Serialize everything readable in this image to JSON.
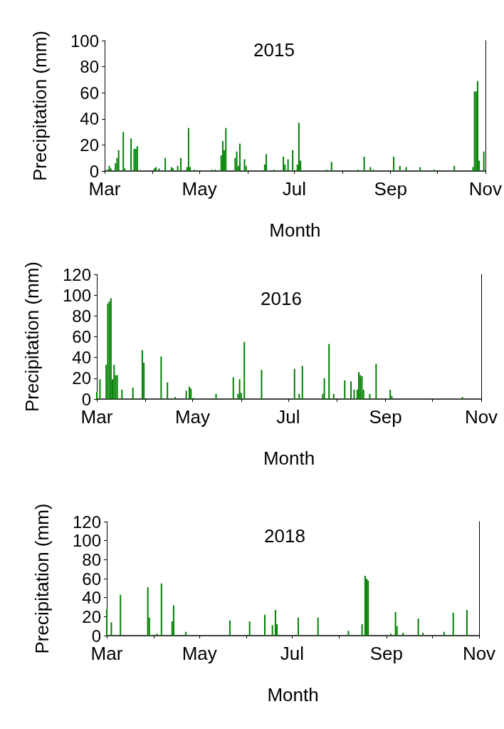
{
  "chart_data": [
    {
      "type": "bar",
      "title": "2015",
      "xlabel": "Month",
      "ylabel": "Precipitation (mm)",
      "color": "#008000",
      "x": [
        "2015-03-03",
        "2015-03-04",
        "2015-03-05",
        "2015-03-08",
        "2015-03-09",
        "2015-03-10",
        "2015-03-13",
        "2015-03-14",
        "2015-03-18",
        "2015-03-20",
        "2015-03-21",
        "2015-03-22",
        "2015-04-02",
        "2015-04-03",
        "2015-04-05",
        "2015-04-09",
        "2015-04-13",
        "2015-04-14",
        "2015-04-17",
        "2015-04-19",
        "2015-04-23",
        "2015-04-24",
        "2015-04-25",
        "2015-04-28",
        "2015-05-09",
        "2015-05-11",
        "2015-05-15",
        "2015-05-16",
        "2015-05-17",
        "2015-05-18",
        "2015-05-24",
        "2015-05-25",
        "2015-05-26",
        "2015-05-27",
        "2015-05-30",
        "2015-05-31",
        "2015-06-12",
        "2015-06-13",
        "2015-06-18",
        "2015-06-24",
        "2015-06-25",
        "2015-06-27",
        "2015-06-30",
        "2015-07-03",
        "2015-07-04",
        "2015-07-05",
        "2015-07-22",
        "2015-07-25",
        "2015-08-11",
        "2015-08-15",
        "2015-08-19",
        "2015-08-21",
        "2015-09-03",
        "2015-09-07",
        "2015-09-11",
        "2015-09-20",
        "2015-09-29",
        "2015-10-12",
        "2015-10-24",
        "2015-10-25",
        "2015-10-26",
        "2015-10-27",
        "2015-10-28",
        "2015-10-31"
      ],
      "values": [
        1,
        4,
        2,
        6,
        10,
        16,
        30,
        2,
        25,
        17,
        17,
        19,
        2,
        3,
        2,
        10,
        3,
        2,
        4,
        10,
        3,
        33,
        3,
        1,
        1,
        1,
        12,
        23,
        16,
        33,
        10,
        15,
        4,
        21,
        9,
        4,
        5,
        13,
        1,
        11,
        5,
        9,
        16,
        5,
        37,
        8,
        1,
        7,
        1,
        11,
        3,
        1,
        11,
        4,
        3,
        3,
        1,
        4,
        3,
        61,
        61,
        69,
        8,
        15
      ],
      "xlim": [
        "2015-03-01",
        "2015-11-01"
      ],
      "xticks": [
        {
          "value": "2015-03-01",
          "label": "Mar"
        },
        {
          "value": "2015-04-01",
          "label": null
        },
        {
          "value": "2015-05-01",
          "label": "May"
        },
        {
          "value": "2015-06-01",
          "label": null
        },
        {
          "value": "2015-07-01",
          "label": "Jul"
        },
        {
          "value": "2015-08-01",
          "label": null
        },
        {
          "value": "2015-09-01",
          "label": "Sep"
        },
        {
          "value": "2015-10-01",
          "label": null
        },
        {
          "value": "2015-11-01",
          "label": "Nov"
        }
      ],
      "ylim": [
        0,
        100
      ],
      "yticks": [
        0,
        20,
        40,
        60,
        80,
        100
      ]
    },
    {
      "type": "bar",
      "title": "2016",
      "xlabel": "Month",
      "ylabel": "Precipitation (mm)",
      "color": "#008000",
      "x": [
        "2016-03-01",
        "2016-03-03",
        "2016-03-07",
        "2016-03-08",
        "2016-03-09",
        "2016-03-10",
        "2016-03-11",
        "2016-03-12",
        "2016-03-13",
        "2016-03-14",
        "2016-03-17",
        "2016-03-24",
        "2016-03-30",
        "2016-03-31",
        "2016-04-11",
        "2016-04-15",
        "2016-04-20",
        "2016-04-27",
        "2016-04-29",
        "2016-04-30",
        "2016-05-02",
        "2016-05-16",
        "2016-05-27",
        "2016-05-30",
        "2016-05-31",
        "2016-06-01",
        "2016-06-03",
        "2016-06-14",
        "2016-07-05",
        "2016-07-08",
        "2016-07-10",
        "2016-07-23",
        "2016-07-24",
        "2016-07-27",
        "2016-07-30",
        "2016-08-06",
        "2016-08-10",
        "2016-08-12",
        "2016-08-14",
        "2016-08-15",
        "2016-08-16",
        "2016-08-17",
        "2016-08-18",
        "2016-08-22",
        "2016-08-26",
        "2016-09-04",
        "2016-09-05",
        "2016-10-20"
      ],
      "values": [
        7,
        19,
        33,
        92,
        94,
        97,
        19,
        33,
        23,
        23,
        9,
        11,
        47,
        35,
        41,
        16,
        2,
        8,
        12,
        10,
        1,
        5,
        21,
        5,
        19,
        6,
        55,
        28,
        29,
        5,
        32,
        5,
        20,
        53,
        5,
        18,
        17,
        9,
        9,
        26,
        23,
        22,
        9,
        5,
        34,
        9,
        3,
        2
      ],
      "xlim": [
        "2016-03-01",
        "2016-11-01"
      ],
      "xticks": [
        {
          "value": "2016-03-01",
          "label": "Mar"
        },
        {
          "value": "2016-04-01",
          "label": null
        },
        {
          "value": "2016-05-01",
          "label": "May"
        },
        {
          "value": "2016-06-01",
          "label": null
        },
        {
          "value": "2016-07-01",
          "label": "Jul"
        },
        {
          "value": "2016-08-01",
          "label": null
        },
        {
          "value": "2016-09-01",
          "label": "Sep"
        },
        {
          "value": "2016-10-01",
          "label": null
        },
        {
          "value": "2016-11-01",
          "label": "Nov"
        }
      ],
      "ylim": [
        0,
        120
      ],
      "yticks": [
        0,
        20,
        40,
        60,
        80,
        100,
        120
      ]
    },
    {
      "type": "bar",
      "title": "2018",
      "xlabel": "Month",
      "ylabel": "Precipitation (mm)",
      "color": "#008000",
      "x": [
        "2018-03-01",
        "2018-03-04",
        "2018-03-10",
        "2018-03-28",
        "2018-03-29",
        "2018-04-03",
        "2018-04-06",
        "2018-04-13",
        "2018-04-14",
        "2018-04-22",
        "2018-05-21",
        "2018-06-03",
        "2018-06-13",
        "2018-06-18",
        "2018-06-20",
        "2018-06-21",
        "2018-07-05",
        "2018-07-18",
        "2018-08-07",
        "2018-08-16",
        "2018-08-18",
        "2018-08-19",
        "2018-08-20",
        "2018-09-04",
        "2018-09-07",
        "2018-09-08",
        "2018-09-12",
        "2018-09-22",
        "2018-09-25",
        "2018-10-09",
        "2018-10-15",
        "2018-10-24"
      ],
      "values": [
        28,
        14,
        43,
        51,
        19,
        2,
        55,
        15,
        32,
        4,
        16,
        15,
        22,
        11,
        27,
        12,
        19,
        19,
        5,
        12,
        63,
        60,
        58,
        2,
        25,
        10,
        3,
        18,
        3,
        4,
        24,
        27
      ],
      "xlim": [
        "2018-03-01",
        "2018-11-01"
      ],
      "xticks": [
        {
          "value": "2018-03-01",
          "label": "Mar"
        },
        {
          "value": "2018-04-01",
          "label": null
        },
        {
          "value": "2018-05-01",
          "label": "May"
        },
        {
          "value": "2018-06-01",
          "label": null
        },
        {
          "value": "2018-07-01",
          "label": "Jul"
        },
        {
          "value": "2018-08-01",
          "label": null
        },
        {
          "value": "2018-09-01",
          "label": "Sep"
        },
        {
          "value": "2018-10-01",
          "label": null
        },
        {
          "value": "2018-11-01",
          "label": "Nov"
        }
      ],
      "ylim": [
        0,
        120
      ],
      "yticks": [
        0,
        20,
        40,
        60,
        80,
        100,
        120
      ]
    }
  ]
}
